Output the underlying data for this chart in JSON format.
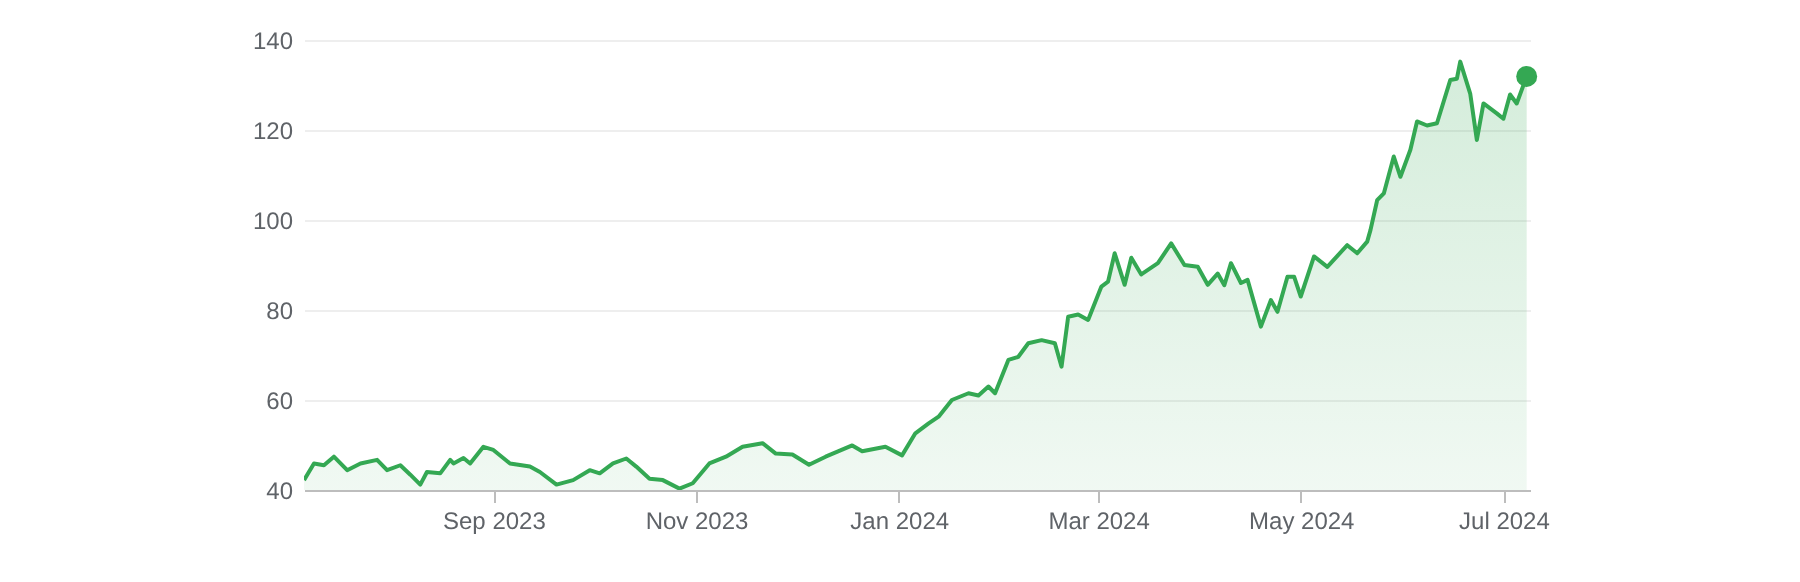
{
  "chart_data": {
    "type": "area",
    "xlim": [
      "2023-07-06",
      "2024-07-09"
    ],
    "ylim": [
      40,
      140
    ],
    "yticks": [
      40,
      60,
      80,
      100,
      120,
      140
    ],
    "xticks": [
      {
        "value": "2023-09-01",
        "label": "Sep 2023"
      },
      {
        "value": "2023-11-01",
        "label": "Nov 2023"
      },
      {
        "value": "2024-01-01",
        "label": "Jan 2024"
      },
      {
        "value": "2024-03-01",
        "label": "Mar 2024"
      },
      {
        "value": "2024-05-01",
        "label": "May 2024"
      },
      {
        "value": "2024-07-01",
        "label": "Jul 2024"
      }
    ],
    "grid": "y",
    "series": [
      {
        "color": "#34a853",
        "x": [
          "2023-07-06",
          "2023-07-09",
          "2023-07-12",
          "2023-07-15",
          "2023-07-19",
          "2023-07-23",
          "2023-07-28",
          "2023-07-31",
          "2023-08-04",
          "2023-08-07",
          "2023-08-10",
          "2023-08-12",
          "2023-08-16",
          "2023-08-19",
          "2023-08-20",
          "2023-08-23",
          "2023-08-25",
          "2023-08-29",
          "2023-09-01",
          "2023-09-06",
          "2023-09-12",
          "2023-09-15",
          "2023-09-20",
          "2023-09-25",
          "2023-09-30",
          "2023-10-03",
          "2023-10-07",
          "2023-10-11",
          "2023-10-14",
          "2023-10-18",
          "2023-10-22",
          "2023-10-27",
          "2023-10-31",
          "2023-11-05",
          "2023-11-10",
          "2023-11-15",
          "2023-11-21",
          "2023-11-25",
          "2023-11-30",
          "2023-12-05",
          "2023-12-10",
          "2023-12-18",
          "2023-12-21",
          "2023-12-28",
          "2024-01-02",
          "2024-01-06",
          "2024-01-10",
          "2024-01-13",
          "2024-01-17",
          "2024-01-22",
          "2024-01-25",
          "2024-01-28",
          "2024-01-30",
          "2024-02-03",
          "2024-02-06",
          "2024-02-09",
          "2024-02-13",
          "2024-02-17",
          "2024-02-19",
          "2024-02-21",
          "2024-02-24",
          "2024-02-27",
          "2024-03-02",
          "2024-03-04",
          "2024-03-06",
          "2024-03-09",
          "2024-03-11",
          "2024-03-14",
          "2024-03-19",
          "2024-03-23",
          "2024-03-27",
          "2024-03-31",
          "2024-04-03",
          "2024-04-06",
          "2024-04-08",
          "2024-04-10",
          "2024-04-13",
          "2024-04-15",
          "2024-04-19",
          "2024-04-22",
          "2024-04-24",
          "2024-04-27",
          "2024-04-29",
          "2024-05-01",
          "2024-05-05",
          "2024-05-09",
          "2024-05-15",
          "2024-05-18",
          "2024-05-21",
          "2024-05-22",
          "2024-05-24",
          "2024-05-26",
          "2024-05-29",
          "2024-05-31",
          "2024-06-03",
          "2024-06-05",
          "2024-06-08",
          "2024-06-11",
          "2024-06-15",
          "2024-06-17",
          "2024-06-18",
          "2024-06-21",
          "2024-06-23",
          "2024-06-25",
          "2024-06-29",
          "2024-07-01",
          "2024-07-03",
          "2024-07-05",
          "2024-07-08"
        ],
        "values": [
          42.2,
          45.9,
          45.5,
          47.4,
          44.4,
          45.9,
          46.7,
          44.4,
          45.5,
          43.4,
          41.2,
          44,
          43.7,
          46.7,
          45.9,
          47.1,
          45.9,
          49.6,
          48.9,
          45.9,
          45.2,
          44,
          41.2,
          42.2,
          44.4,
          43.7,
          45.9,
          47,
          45.2,
          42.5,
          42.2,
          40.3,
          41.5,
          45.9,
          47.4,
          49.6,
          50.4,
          48.1,
          47.9,
          45.6,
          47.4,
          49.9,
          48.6,
          49.6,
          47.7,
          52.6,
          54.8,
          56.3,
          60,
          61.5,
          61,
          63,
          61.5,
          68.9,
          69.6,
          72.6,
          73.3,
          72.6,
          67.4,
          78.5,
          79,
          77.8,
          85.2,
          86.3,
          92.6,
          85.6,
          91.6,
          87.9,
          90.4,
          94.8,
          90,
          89.6,
          85.6,
          88.1,
          85.5,
          90.4,
          86,
          86.7,
          76.3,
          82.2,
          79.6,
          87.4,
          87.4,
          83,
          91.9,
          89.6,
          94.4,
          92.6,
          95.2,
          97.8,
          104.4,
          105.9,
          114.1,
          109.6,
          115.6,
          121.9,
          121,
          121.5,
          131.1,
          131.4,
          135.2,
          128.1,
          117.8,
          125.9,
          123.7,
          122.5,
          127.9,
          125.9,
          131.9
        ]
      },
      {
        "type": "scatter",
        "color": "#34a853",
        "x": [
          "2024-07-08"
        ],
        "values": [
          131.9
        ]
      }
    ]
  }
}
